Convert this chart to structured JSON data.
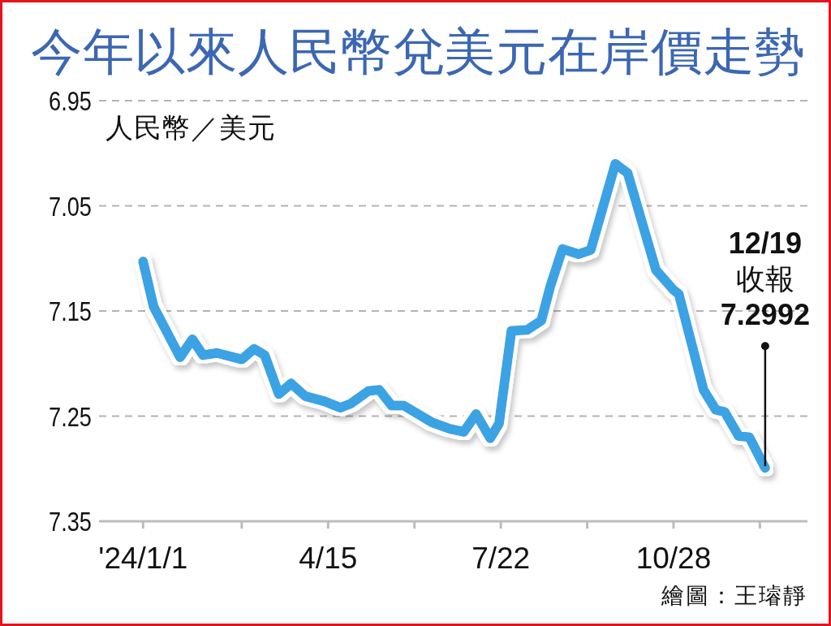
{
  "chart_data": {
    "type": "line",
    "title": "今年以來人民幣兌美元在岸價走勢",
    "ylabel": "人民幣／美元",
    "x": [
      "2024-01-01",
      "2024-01-07",
      "2024-01-22",
      "2024-01-29",
      "2024-02-04",
      "2024-02-12",
      "2024-02-26",
      "2024-03-04",
      "2024-03-10",
      "2024-03-18",
      "2024-03-25",
      "2024-04-02",
      "2024-04-13",
      "2024-04-22",
      "2024-04-28",
      "2024-05-08",
      "2024-05-14",
      "2024-05-21",
      "2024-05-28",
      "2024-06-04",
      "2024-06-13",
      "2024-06-23",
      "2024-07-01",
      "2024-07-08",
      "2024-07-16",
      "2024-07-21",
      "2024-07-28",
      "2024-08-06",
      "2024-08-14",
      "2024-08-19",
      "2024-08-26",
      "2024-09-04",
      "2024-09-11",
      "2024-09-25",
      "2024-10-02",
      "2024-10-18",
      "2024-10-28",
      "2024-10-31",
      "2024-11-14",
      "2024-11-21",
      "2024-11-26",
      "2024-12-04",
      "2024-12-10",
      "2024-12-19"
    ],
    "series": [
      {
        "color": "#3ba3e4",
        "values": [
          7.103,
          7.146,
          7.194,
          7.177,
          7.192,
          7.19,
          7.196,
          7.186,
          7.192,
          7.229,
          7.219,
          7.231,
          7.236,
          7.242,
          7.238,
          7.226,
          7.225,
          7.24,
          7.24,
          7.247,
          7.256,
          7.262,
          7.265,
          7.248,
          7.271,
          7.257,
          7.169,
          7.168,
          7.159,
          7.127,
          7.091,
          7.096,
          7.092,
          7.01,
          7.019,
          7.111,
          7.13,
          7.134,
          7.225,
          7.244,
          7.246,
          7.269,
          7.27,
          7.2992
        ]
      }
    ],
    "xlim": [
      "2023-12-07",
      "2025-01-12"
    ],
    "xticks": [
      {
        "value": "2024-01-01",
        "label": "'24/1/1"
      },
      {
        "value": "2024-02-26",
        "label": null
      },
      {
        "value": "2024-04-15",
        "label": "4/15"
      },
      {
        "value": "2024-06-03",
        "label": null
      },
      {
        "value": "2024-07-22",
        "label": "7/22"
      },
      {
        "value": "2024-09-09",
        "label": null
      },
      {
        "value": "2024-10-28",
        "label": "10/28"
      },
      {
        "value": "2024-12-16",
        "label": null
      }
    ],
    "ylim": [
      7.35,
      6.95
    ],
    "yticks": [
      6.95,
      7.05,
      7.15,
      7.25,
      7.35
    ],
    "grid": "y",
    "line_style": "solid",
    "annotations": [
      {
        "text": "12/19\n收報\n7.2992",
        "x": "2024-12-19",
        "y": 7.2992
      },
      "繪圖：王璿靜"
    ]
  }
}
